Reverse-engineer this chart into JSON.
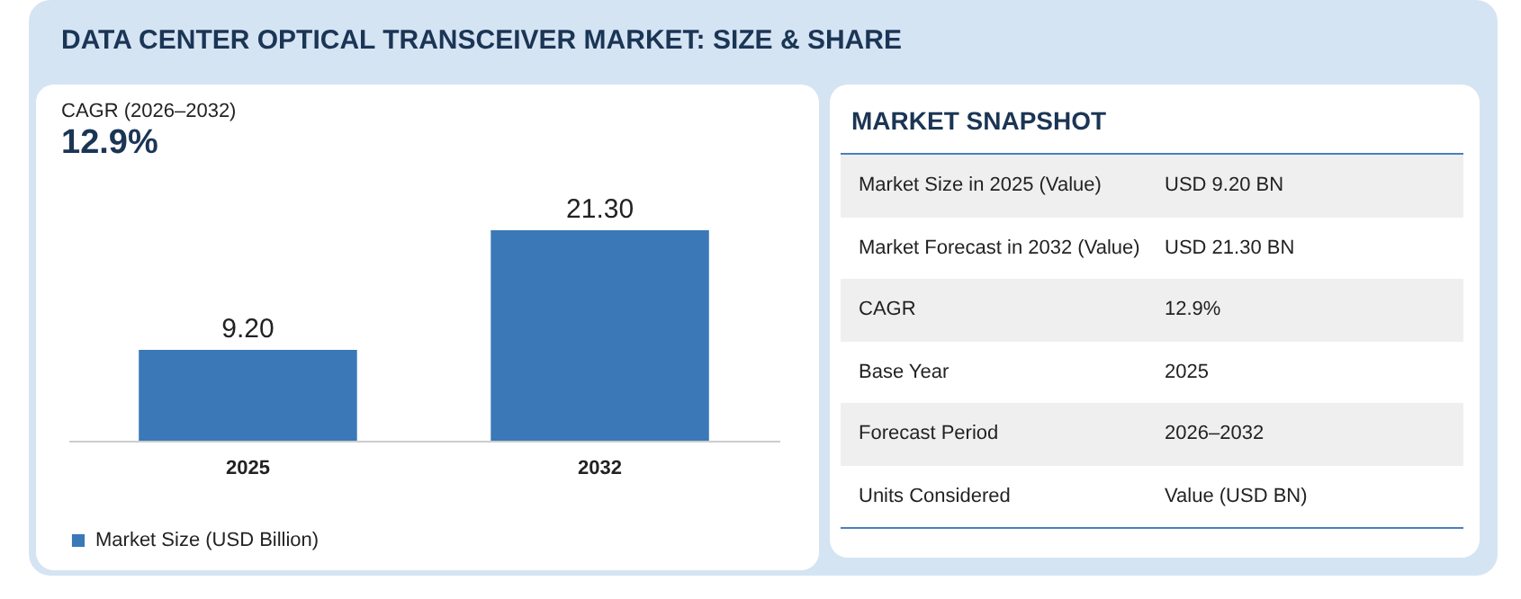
{
  "chart_data": [
    {
      "type": "bar",
      "title": "DATA CENTER OPTICAL TRANSCEIVER MARKET: SIZE & SHARE",
      "annotations": [
        "CAGR (2026–2032)",
        "12.9%"
      ],
      "categories": [
        "2025",
        "2032"
      ],
      "series": [
        {
          "name": "Market Size (USD Billion)",
          "color": "#3a78b8",
          "values": [
            9.2,
            21.3
          ],
          "value_labels": [
            "9.20",
            "21.30"
          ]
        }
      ],
      "legend": "bottom"
    },
    {
      "type": "other",
      "title": "MARKET SNAPSHOT",
      "annotations": [
        "Market Size in 2025 (Value)",
        "USD 9.20 BN",
        "Market Forecast in 2032 (Value)",
        "USD 21.30 BN",
        "CAGR",
        "12.9%",
        "Base Year",
        "2025",
        "Forecast Period",
        "2026–2032",
        "Units Considered",
        "Value (USD BN)"
      ]
    }
  ]
}
